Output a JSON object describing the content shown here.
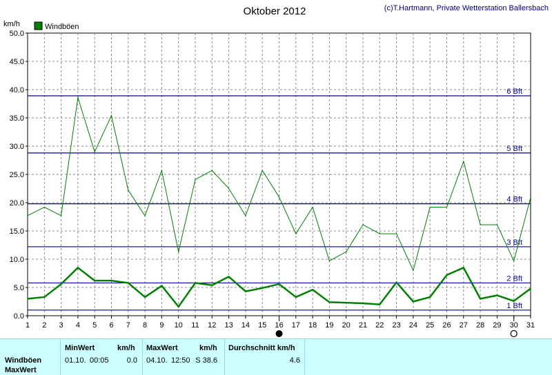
{
  "chart_data": {
    "type": "line",
    "title": "Oktober 2012",
    "credit": "(c)T.Hartmann, Private Wetterstation Ballersbach",
    "ylabel": "km/h",
    "ylim": [
      0,
      50
    ],
    "yticks": [
      "0.0",
      "5.0",
      "10.0",
      "15.0",
      "20.0",
      "25.0",
      "30.0",
      "35.0",
      "40.0",
      "45.0",
      "50.0"
    ],
    "x": [
      1,
      2,
      3,
      4,
      5,
      6,
      7,
      8,
      9,
      10,
      11,
      12,
      13,
      14,
      15,
      16,
      17,
      18,
      19,
      20,
      21,
      22,
      23,
      24,
      25,
      26,
      27,
      28,
      29,
      30,
      31
    ],
    "grid": true,
    "legend": {
      "position": "top-left",
      "label": "Windböen",
      "color": "#008000"
    },
    "beaufort_lines": [
      {
        "label": "1 Bft",
        "value": 1.0
      },
      {
        "label": "2 Bft",
        "value": 5.8
      },
      {
        "label": "3 Bft",
        "value": 12.2
      },
      {
        "label": "4 Bft",
        "value": 19.8
      },
      {
        "label": "5 Bft",
        "value": 28.8
      },
      {
        "label": "6 Bft",
        "value": 38.9
      }
    ],
    "series": [
      {
        "name": "Windböen",
        "color": "#008000",
        "width": 1,
        "values": [
          17.7,
          19.2,
          17.7,
          38.6,
          29.0,
          35.4,
          22.2,
          17.7,
          25.7,
          11.3,
          24.1,
          25.7,
          22.5,
          17.7,
          25.7,
          21.0,
          14.5,
          19.2,
          9.7,
          11.3,
          16.1,
          14.5,
          14.5,
          8.0,
          19.2,
          19.2,
          27.3,
          16.1,
          16.1,
          9.7,
          20.9
        ]
      },
      {
        "color": "#008000",
        "width": 2.5,
        "values": [
          3.0,
          3.3,
          5.6,
          8.5,
          6.2,
          6.2,
          5.8,
          3.3,
          5.3,
          1.6,
          5.8,
          5.4,
          6.9,
          4.3,
          4.9,
          5.6,
          3.3,
          4.6,
          2.4,
          2.3,
          2.2,
          2.0,
          5.9,
          2.5,
          3.3,
          7.2,
          8.5,
          3.0,
          3.6,
          2.6,
          4.8
        ]
      }
    ],
    "markers": [
      {
        "day": 16,
        "symbol": "new-moon"
      },
      {
        "day": 30,
        "symbol": "full-moon"
      }
    ]
  },
  "table": {
    "row1_label": "Windböen",
    "row2_label": "MaxWert",
    "min_header": "MinWert",
    "min_unit": "km/h",
    "min_date": "01.10.",
    "min_time": "00:05",
    "min_value": "0.0",
    "max_header": "MaxWert",
    "max_unit": "km/h",
    "max_date": "04.10.",
    "max_time": "12:50",
    "max_value": "S 38.6",
    "avg_header": "Durchschnitt km/h",
    "avg_value": "4.6"
  }
}
